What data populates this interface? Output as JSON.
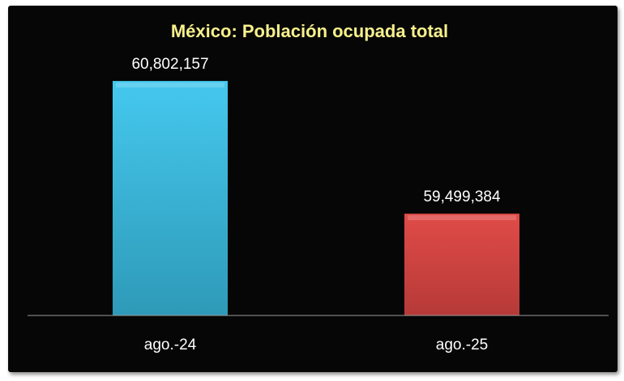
{
  "chart_data": {
    "type": "bar",
    "title": "México: Población ocupada total",
    "categories": [
      "ago.-24",
      "ago.-25"
    ],
    "values": [
      60802157,
      59499384
    ],
    "data_labels": [
      "60,802,157",
      "59,499,384"
    ],
    "colors": [
      "#3cbfe6",
      "#d9413f"
    ],
    "title_color": "#f7f08c",
    "background": "#060606",
    "ylim": [
      58500000,
      61200000
    ],
    "grid": false,
    "legend": "none"
  }
}
